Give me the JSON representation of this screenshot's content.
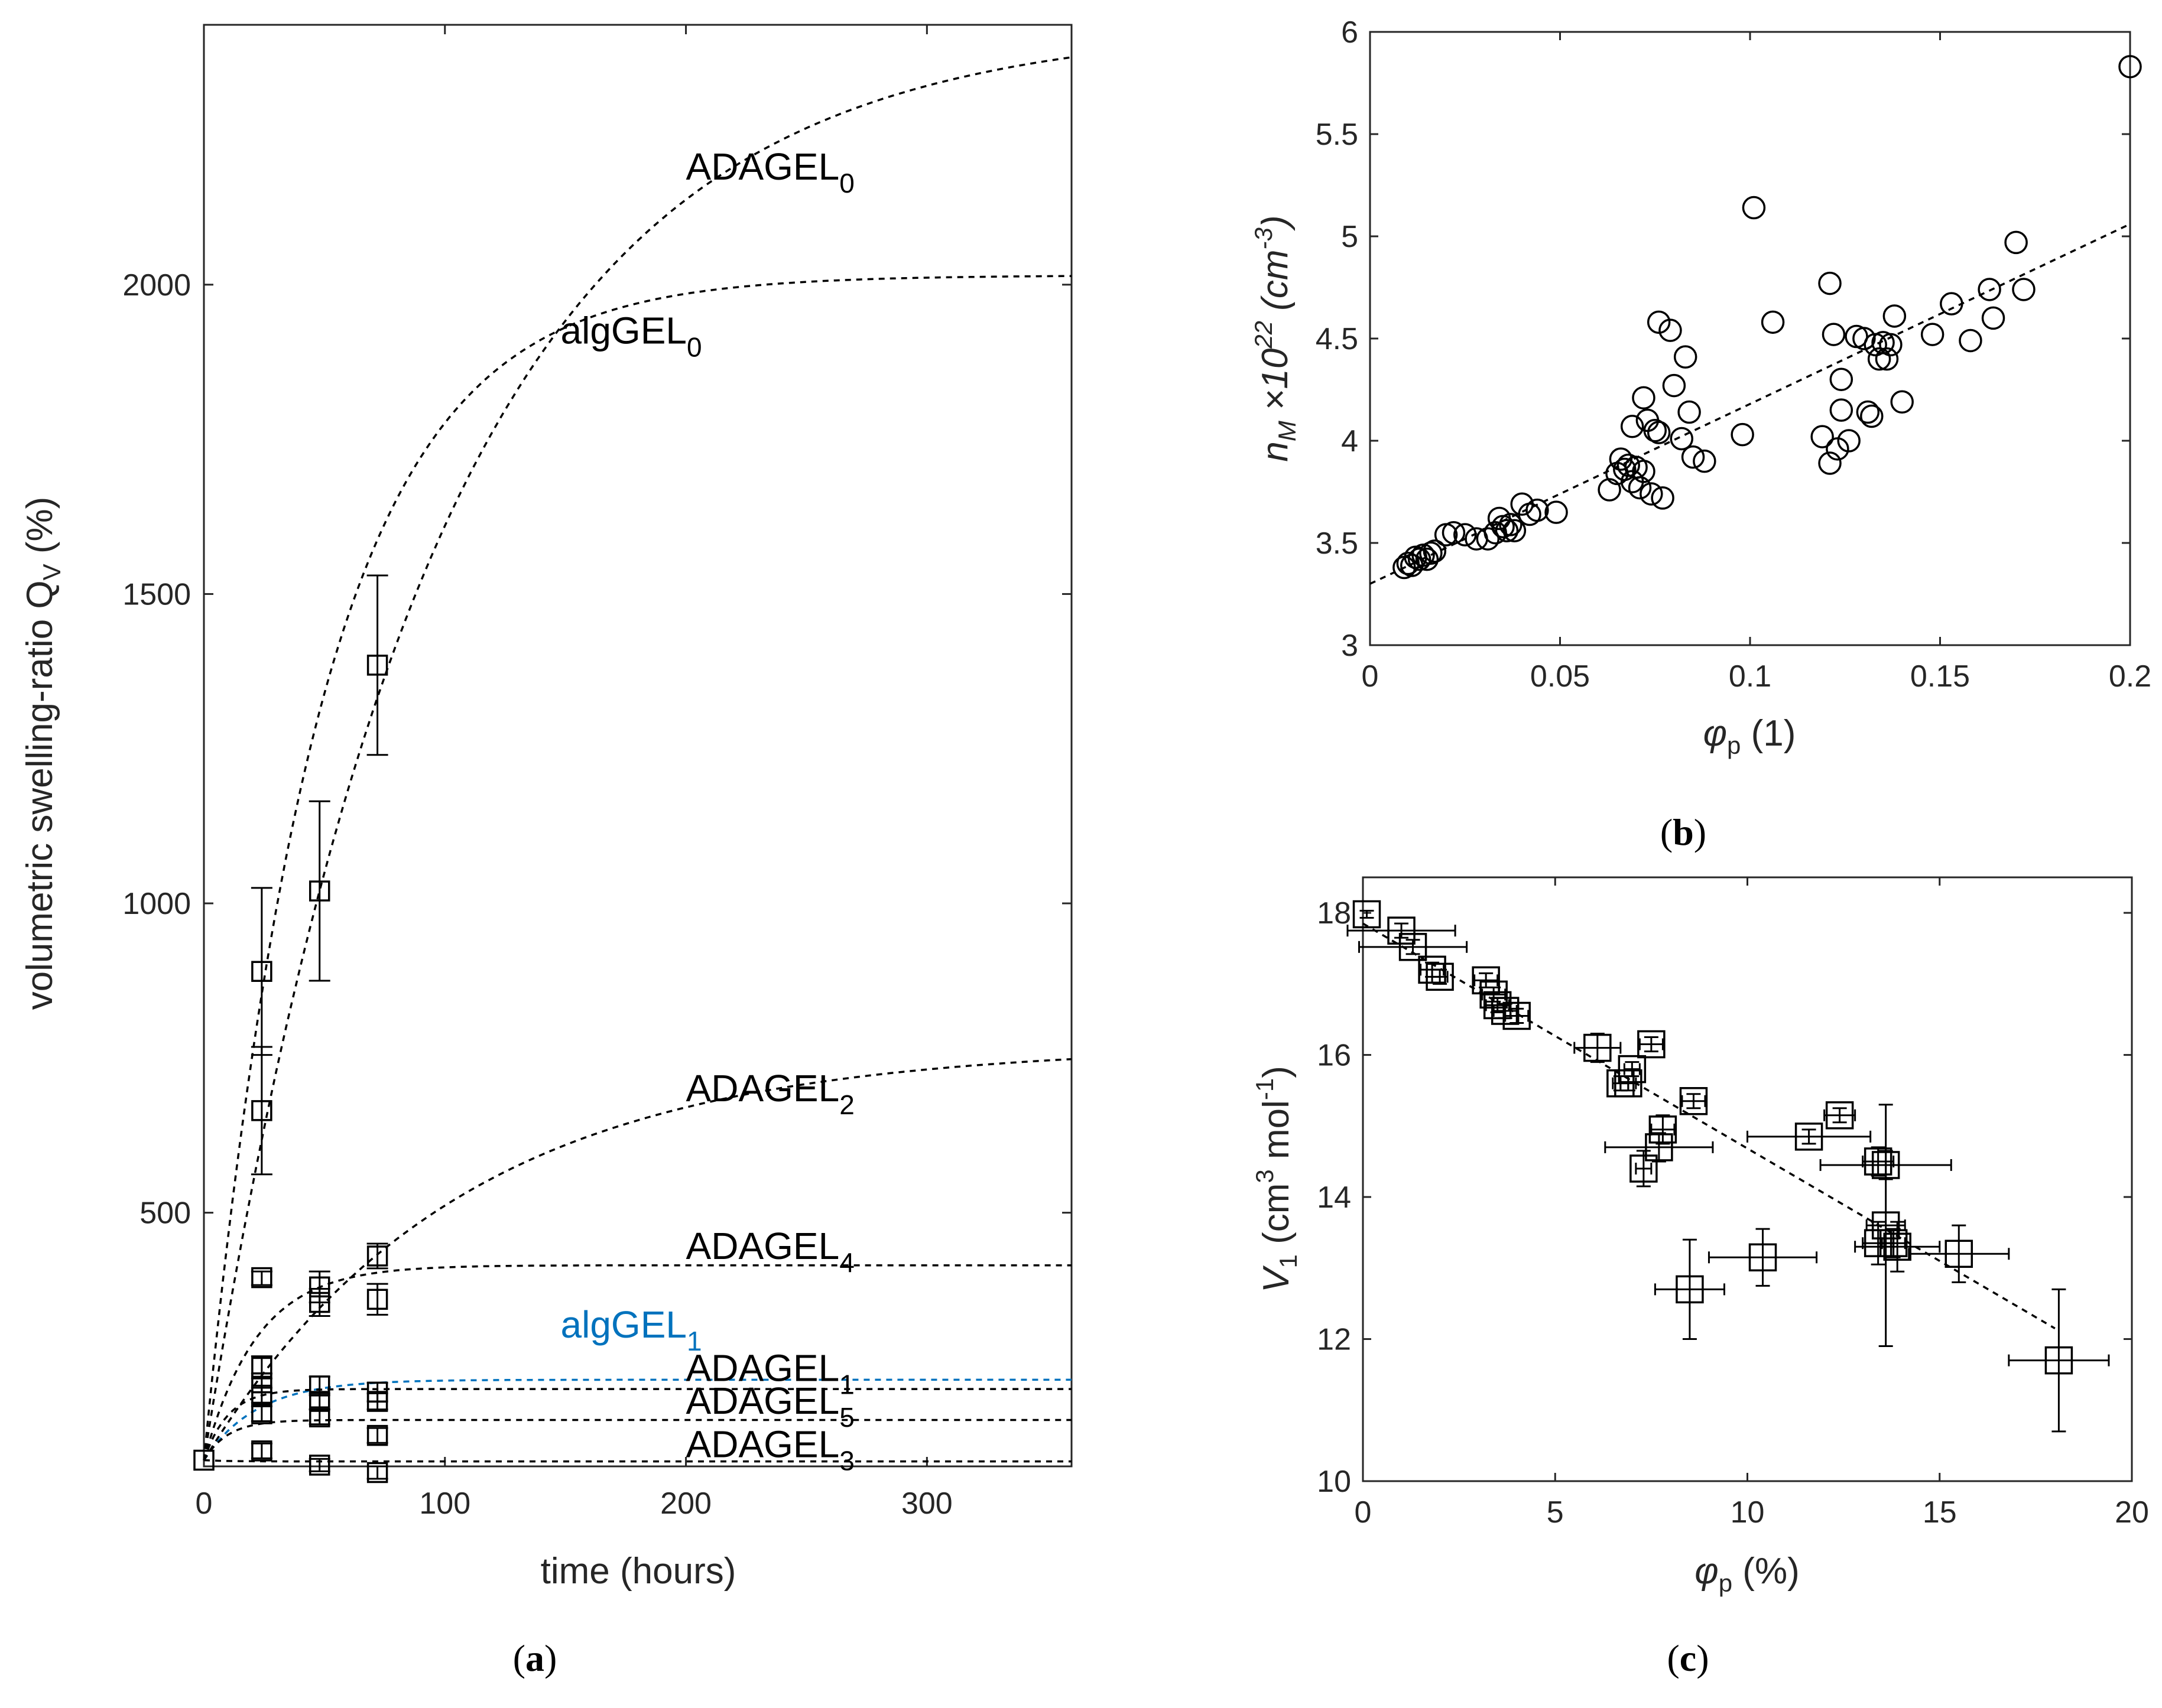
{
  "chart_data": [
    {
      "panel": "(a)",
      "type": "scatter",
      "xlabel": "time (hours)",
      "ylabel_main": "volumetric swelling-ratio Q",
      "ylabel_sub": "V",
      "ylabel_unit": " (%)",
      "xlim": [
        0,
        360
      ],
      "ylim": [
        90,
        2420
      ],
      "xticks": [
        0,
        100,
        200,
        300
      ],
      "yticks": [
        500,
        1000,
        1500,
        2000
      ],
      "fits": [
        {
          "name": "ADAGEL",
          "sub": "0",
          "q0": 100,
          "qinf": 2420,
          "tau": 95,
          "color": "#000000",
          "label_at": [
            200,
            2170
          ]
        },
        {
          "name": "algGEL",
          "sub": "0",
          "q0": 100,
          "qinf": 2015,
          "tau": 48,
          "color": "#000000",
          "label_at": [
            148,
            1905
          ]
        },
        {
          "name": "ADAGEL",
          "sub": "2",
          "q0": 100,
          "qinf": 770,
          "tau": 105,
          "color": "#000000",
          "label_at": [
            200,
            680
          ]
        },
        {
          "name": "ADAGEL",
          "sub": "4",
          "q0": 100,
          "qinf": 415,
          "tau": 22,
          "color": "#000000",
          "label_at": [
            200,
            425
          ]
        },
        {
          "name": "algGEL",
          "sub": "1",
          "q0": 100,
          "qinf": 230,
          "tau": 22,
          "color": "#0072BD",
          "label_at": [
            148,
            298
          ]
        },
        {
          "name": "ADAGEL",
          "sub": "1",
          "q0": 100,
          "qinf": 215,
          "tau": 10,
          "color": "#000000",
          "label_at": [
            200,
            228
          ]
        },
        {
          "name": "ADAGEL",
          "sub": "5",
          "q0": 100,
          "qinf": 165,
          "tau": 10,
          "color": "#000000",
          "label_at": [
            200,
            175
          ]
        },
        {
          "name": "ADAGEL",
          "sub": "3",
          "q0": 100,
          "qinf": 98,
          "tau": 10,
          "color": "#000000",
          "label_at": [
            200,
            105
          ]
        }
      ],
      "points": [
        {
          "x": 0,
          "y": 100
        },
        {
          "x": 24,
          "y": 890,
          "lo": 755,
          "hi": 1025
        },
        {
          "x": 24,
          "y": 665,
          "lo": 562,
          "hi": 768
        },
        {
          "x": 24,
          "y": 395,
          "lo": 383,
          "hi": 405
        },
        {
          "x": 24,
          "y": 250,
          "lo": 232,
          "hi": 268
        },
        {
          "x": 24,
          "y": 225,
          "lo": 210,
          "hi": 240
        },
        {
          "x": 24,
          "y": 205,
          "lo": 193,
          "hi": 217
        },
        {
          "x": 24,
          "y": 175,
          "lo": 163,
          "hi": 187
        },
        {
          "x": 24,
          "y": 115,
          "lo": 103,
          "hi": 127
        },
        {
          "x": 48,
          "y": 1020,
          "lo": 875,
          "hi": 1165
        },
        {
          "x": 48,
          "y": 380,
          "lo": 355,
          "hi": 405
        },
        {
          "x": 48,
          "y": 355,
          "lo": 333,
          "hi": 377
        },
        {
          "x": 48,
          "y": 220,
          "lo": 205,
          "hi": 235
        },
        {
          "x": 48,
          "y": 195,
          "lo": 182,
          "hi": 208
        },
        {
          "x": 48,
          "y": 170,
          "lo": 158,
          "hi": 182
        },
        {
          "x": 48,
          "y": 92,
          "lo": 82,
          "hi": 102
        },
        {
          "x": 72,
          "y": 1385,
          "lo": 1240,
          "hi": 1530
        },
        {
          "x": 72,
          "y": 430,
          "lo": 410,
          "hi": 450
        },
        {
          "x": 72,
          "y": 360,
          "lo": 335,
          "hi": 385
        },
        {
          "x": 72,
          "y": 210,
          "lo": 195,
          "hi": 225
        },
        {
          "x": 72,
          "y": 195,
          "lo": 182,
          "hi": 208
        },
        {
          "x": 72,
          "y": 140,
          "lo": 128,
          "hi": 152
        },
        {
          "x": 72,
          "y": 80,
          "lo": 70,
          "hi": 90
        }
      ]
    },
    {
      "panel": "(b)",
      "type": "scatter",
      "xlabel_sym": "φ",
      "xlabel_sub": "p",
      "xlabel_unit": " (1)",
      "ylabel_sym": "n",
      "ylabel_sub": "M",
      "ylabel_times": " ×10",
      "ylabel_exp": "22",
      "ylabel_unit_a": " (cm",
      "ylabel_unit_exp": "-3",
      "ylabel_unit_b": ")",
      "xlim": [
        0,
        0.2
      ],
      "ylim": [
        3,
        6
      ],
      "xticks": [
        0,
        0.05,
        0.1,
        0.15,
        0.2
      ],
      "xticklabels": [
        "0",
        "0.05",
        "0.1",
        "0.15",
        "0.2"
      ],
      "yticks": [
        3,
        3.5,
        4,
        4.5,
        5,
        5.5,
        6
      ],
      "yticklabels": [
        "3",
        "3.5",
        "4",
        "4.5",
        "5",
        "5.5",
        "6"
      ],
      "fit": {
        "x": [
          0,
          0.2
        ],
        "y": [
          3.3,
          5.06
        ]
      },
      "points": [
        [
          0.009,
          3.38
        ],
        [
          0.01,
          3.4
        ],
        [
          0.011,
          3.39
        ],
        [
          0.012,
          3.43
        ],
        [
          0.013,
          3.42
        ],
        [
          0.014,
          3.44
        ],
        [
          0.015,
          3.42
        ],
        [
          0.016,
          3.45
        ],
        [
          0.017,
          3.46
        ],
        [
          0.02,
          3.54
        ],
        [
          0.022,
          3.55
        ],
        [
          0.025,
          3.54
        ],
        [
          0.028,
          3.52
        ],
        [
          0.031,
          3.52
        ],
        [
          0.033,
          3.55
        ],
        [
          0.034,
          3.62
        ],
        [
          0.035,
          3.58
        ],
        [
          0.036,
          3.56
        ],
        [
          0.037,
          3.59
        ],
        [
          0.038,
          3.56
        ],
        [
          0.04,
          3.69
        ],
        [
          0.042,
          3.64
        ],
        [
          0.044,
          3.66
        ],
        [
          0.049,
          3.65
        ],
        [
          0.063,
          3.76
        ],
        [
          0.065,
          3.84
        ],
        [
          0.066,
          3.91
        ],
        [
          0.067,
          3.86
        ],
        [
          0.068,
          3.88
        ],
        [
          0.069,
          4.07
        ],
        [
          0.069,
          3.8
        ],
        [
          0.07,
          3.87
        ],
        [
          0.071,
          3.77
        ],
        [
          0.072,
          4.21
        ],
        [
          0.072,
          3.85
        ],
        [
          0.073,
          4.1
        ],
        [
          0.074,
          3.74
        ],
        [
          0.075,
          4.05
        ],
        [
          0.076,
          4.58
        ],
        [
          0.076,
          4.04
        ],
        [
          0.077,
          3.72
        ],
        [
          0.079,
          4.54
        ],
        [
          0.08,
          4.27
        ],
        [
          0.082,
          4.01
        ],
        [
          0.083,
          4.41
        ],
        [
          0.084,
          4.14
        ],
        [
          0.085,
          3.92
        ],
        [
          0.088,
          3.9
        ],
        [
          0.098,
          4.03
        ],
        [
          0.101,
          5.14
        ],
        [
          0.106,
          4.58
        ],
        [
          0.119,
          4.02
        ],
        [
          0.121,
          4.77
        ],
        [
          0.121,
          3.89
        ],
        [
          0.122,
          4.52
        ],
        [
          0.123,
          3.96
        ],
        [
          0.124,
          4.3
        ],
        [
          0.124,
          4.15
        ],
        [
          0.126,
          4.0
        ],
        [
          0.128,
          4.51
        ],
        [
          0.13,
          4.5
        ],
        [
          0.131,
          4.14
        ],
        [
          0.132,
          4.12
        ],
        [
          0.133,
          4.47
        ],
        [
          0.134,
          4.4
        ],
        [
          0.135,
          4.48
        ],
        [
          0.136,
          4.4
        ],
        [
          0.137,
          4.47
        ],
        [
          0.138,
          4.61
        ],
        [
          0.14,
          4.19
        ],
        [
          0.148,
          4.52
        ],
        [
          0.153,
          4.67
        ],
        [
          0.158,
          4.49
        ],
        [
          0.163,
          4.74
        ],
        [
          0.164,
          4.6
        ],
        [
          0.17,
          4.97
        ],
        [
          0.172,
          4.74
        ],
        [
          0.2,
          5.83
        ]
      ]
    },
    {
      "panel": "(c)",
      "type": "scatter",
      "xlabel_sym": "φ",
      "xlabel_sub": "p",
      "xlabel_unit": " (%)",
      "ylabel_sym": "V",
      "ylabel_sub": "1",
      "ylabel_unit_a": " (cm",
      "ylabel_unit_exp": "3",
      "ylabel_unit_b": " mol",
      "ylabel_unit_exp2": "-1",
      "ylabel_unit_c": ")",
      "xlim": [
        0,
        20
      ],
      "ylim": [
        10,
        18.5
      ],
      "xticks": [
        0,
        5,
        10,
        15,
        20
      ],
      "xticklabels": [
        "0",
        "5",
        "10",
        "15",
        "20"
      ],
      "yticks": [
        10,
        12,
        14,
        16,
        18
      ],
      "yticklabels": [
        "10",
        "12",
        "14",
        "16",
        "18"
      ],
      "fit": {
        "x": [
          0,
          18
        ],
        "y": [
          17.85,
          12.15
        ]
      },
      "points": [
        {
          "x": 0.1,
          "y": 17.98,
          "xe": 0,
          "ye": 0.05
        },
        {
          "x": 1.0,
          "y": 17.75,
          "xe": 1.4,
          "ye": 0.1
        },
        {
          "x": 1.3,
          "y": 17.52,
          "xe": 1.4,
          "ye": 0.1
        },
        {
          "x": 1.8,
          "y": 17.2,
          "xe": 0.3,
          "ye": 0.1
        },
        {
          "x": 2.0,
          "y": 17.1,
          "xe": 0.2,
          "ye": 0.1
        },
        {
          "x": 3.2,
          "y": 17.05,
          "xe": 0.3,
          "ye": 0.1
        },
        {
          "x": 3.4,
          "y": 16.85,
          "xe": 0.3,
          "ye": 0.1
        },
        {
          "x": 3.5,
          "y": 16.7,
          "xe": 0.3,
          "ye": 0.1
        },
        {
          "x": 3.7,
          "y": 16.62,
          "xe": 0.3,
          "ye": 0.1
        },
        {
          "x": 4.0,
          "y": 16.55,
          "xe": 0.3,
          "ye": 0.1
        },
        {
          "x": 6.1,
          "y": 16.1,
          "xe": 0.6,
          "ye": 0.2
        },
        {
          "x": 6.7,
          "y": 15.6,
          "xe": 0.2,
          "ye": 0.1
        },
        {
          "x": 6.9,
          "y": 15.6,
          "xe": 0.2,
          "ye": 0.1
        },
        {
          "x": 7.0,
          "y": 15.8,
          "xe": 0.2,
          "ye": 0.1
        },
        {
          "x": 7.5,
          "y": 16.15,
          "xe": 0.3,
          "ye": 0.1
        },
        {
          "x": 7.3,
          "y": 14.4,
          "xe": 0.2,
          "ye": 0.25
        },
        {
          "x": 7.7,
          "y": 14.7,
          "xe": 1.4,
          "ye": 0.2
        },
        {
          "x": 7.8,
          "y": 14.95,
          "xe": 0.3,
          "ye": 0.2
        },
        {
          "x": 8.6,
          "y": 15.35,
          "xe": 0.3,
          "ye": 0.1
        },
        {
          "x": 8.5,
          "y": 12.7,
          "xe": 0.9,
          "ye": 0.7
        },
        {
          "x": 10.4,
          "y": 13.15,
          "xe": 1.4,
          "ye": 0.4
        },
        {
          "x": 11.6,
          "y": 14.85,
          "xe": 1.6,
          "ye": 0.1
        },
        {
          "x": 12.4,
          "y": 15.15,
          "xe": 0.4,
          "ye": 0.1
        },
        {
          "x": 13.4,
          "y": 14.5,
          "xe": 0.4,
          "ye": 0.2
        },
        {
          "x": 13.6,
          "y": 14.45,
          "xe": 1.7,
          "ye": 0.2
        },
        {
          "x": 13.6,
          "y": 13.6,
          "xe": 0.5,
          "ye": 1.7
        },
        {
          "x": 13.4,
          "y": 13.35,
          "xe": 0.4,
          "ye": 0.3
        },
        {
          "x": 13.9,
          "y": 13.3,
          "xe": 1.1,
          "ye": 0.35
        },
        {
          "x": 13.8,
          "y": 13.35,
          "xe": 0.3,
          "ye": 0.2
        },
        {
          "x": 15.5,
          "y": 13.2,
          "xe": 1.3,
          "ye": 0.4
        },
        {
          "x": 18.1,
          "y": 11.7,
          "xe": 1.3,
          "ye": 1.0
        }
      ]
    }
  ]
}
